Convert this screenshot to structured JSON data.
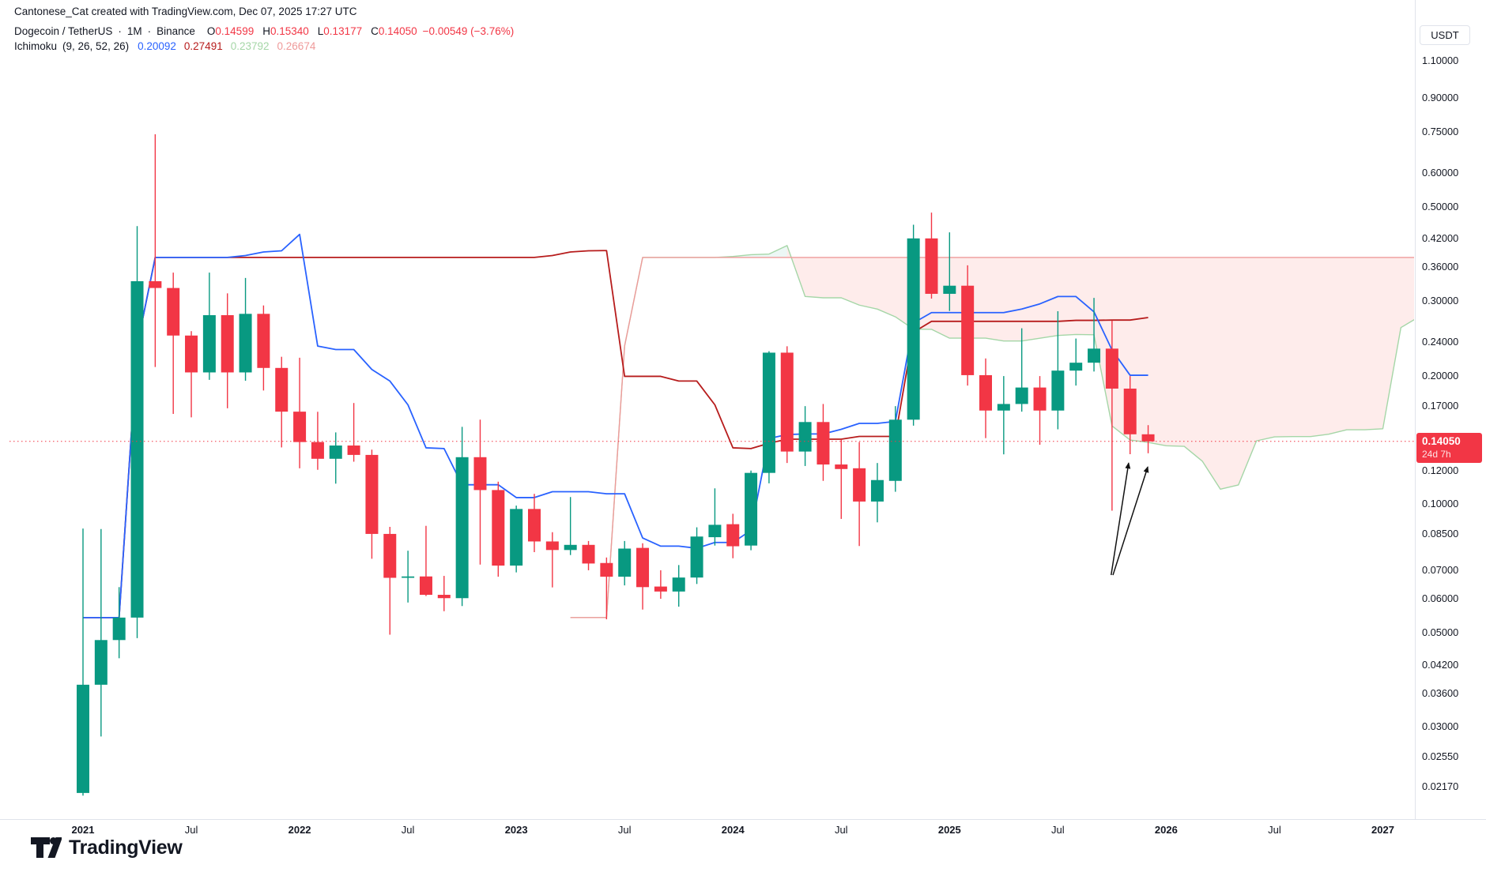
{
  "header": {
    "attribution": "Cantonese_Cat created with TradingView.com, Dec 07, 2025 17:27 UTC"
  },
  "symbol_legend": {
    "pair": "Dogecoin / TetherUS",
    "separator": "·",
    "interval": "1M",
    "exchange": "Binance",
    "ohlc": [
      {
        "label": "O",
        "value": "0.14599"
      },
      {
        "label": "H",
        "value": "0.15340"
      },
      {
        "label": "L",
        "value": "0.13177"
      },
      {
        "label": "C",
        "value": "0.14050"
      }
    ],
    "change": "−0.00549 (−3.76%)",
    "value_color": "#F23645"
  },
  "indicator_legend": {
    "name": "Ichimoku",
    "params": "(9, 26, 52, 26)",
    "values": [
      {
        "text": "0.20092",
        "color": "#2962FF"
      },
      {
        "text": "0.27491",
        "color": "#B71C1C"
      },
      {
        "text": "0.23792",
        "color": "#A5D6A7"
      },
      {
        "text": "0.26674",
        "color": "#EF9A9A"
      }
    ]
  },
  "price_axis": {
    "currency": "USDT",
    "ticks": [
      {
        "value": 1.1,
        "label": "1.10000"
      },
      {
        "value": 0.9,
        "label": "0.90000"
      },
      {
        "value": 0.75,
        "label": "0.75000"
      },
      {
        "value": 0.6,
        "label": "0.60000"
      },
      {
        "value": 0.5,
        "label": "0.50000"
      },
      {
        "value": 0.42,
        "label": "0.42000"
      },
      {
        "value": 0.36,
        "label": "0.36000"
      },
      {
        "value": 0.3,
        "label": "0.30000"
      },
      {
        "value": 0.24,
        "label": "0.24000"
      },
      {
        "value": 0.2,
        "label": "0.20000"
      },
      {
        "value": 0.17,
        "label": "0.17000"
      },
      {
        "value": 0.12,
        "label": "0.12000"
      },
      {
        "value": 0.1,
        "label": "0.10000"
      },
      {
        "value": 0.085,
        "label": "0.08500"
      },
      {
        "value": 0.07,
        "label": "0.07000"
      },
      {
        "value": 0.06,
        "label": "0.06000"
      },
      {
        "value": 0.05,
        "label": "0.05000"
      },
      {
        "value": 0.042,
        "label": "0.04200"
      },
      {
        "value": 0.036,
        "label": "0.03600"
      },
      {
        "value": 0.03,
        "label": "0.03000"
      },
      {
        "value": 0.0255,
        "label": "0.02550"
      },
      {
        "value": 0.0217,
        "label": "0.02170"
      }
    ],
    "last_price": {
      "text": "0.14050",
      "countdown": "24d 7h",
      "value": 0.1405,
      "color": "#F23645"
    }
  },
  "time_axis": {
    "labels": [
      {
        "text": "2021",
        "month_index": 0,
        "major": true
      },
      {
        "text": "Jul",
        "month_index": 6,
        "major": false
      },
      {
        "text": "2022",
        "month_index": 12,
        "major": true
      },
      {
        "text": "Jul",
        "month_index": 18,
        "major": false
      },
      {
        "text": "2023",
        "month_index": 24,
        "major": true
      },
      {
        "text": "Jul",
        "month_index": 30,
        "major": false
      },
      {
        "text": "2024",
        "month_index": 36,
        "major": true
      },
      {
        "text": "Jul",
        "month_index": 42,
        "major": false
      },
      {
        "text": "2025",
        "month_index": 48,
        "major": true
      },
      {
        "text": "Jul",
        "month_index": 54,
        "major": false
      },
      {
        "text": "2026",
        "month_index": 60,
        "major": true
      },
      {
        "text": "Jul",
        "month_index": 66,
        "major": false
      },
      {
        "text": "2027",
        "month_index": 72,
        "major": true
      }
    ]
  },
  "logo": {
    "brand": "TradingView"
  },
  "chart_data": {
    "type": "candlestick",
    "title": "Dogecoin / TetherUS monthly with Ichimoku (9, 26, 52, 26)",
    "symbol": "DOGEUSDT",
    "exchange": "Binance",
    "interval": "1M",
    "scale": "log",
    "start_month": "2021-01",
    "ylim": [
      0.01823,
      1.3555
    ],
    "grid": false,
    "ohlc": [
      [
        0.021,
        0.0877,
        0.0207,
        0.0377
      ],
      [
        0.0377,
        0.0875,
        0.0285,
        0.048
      ],
      [
        0.048,
        0.0639,
        0.0435,
        0.0542
      ],
      [
        0.0542,
        0.45,
        0.0485,
        0.334
      ],
      [
        0.334,
        0.739,
        0.21,
        0.322
      ],
      [
        0.322,
        0.35,
        0.163,
        0.249
      ],
      [
        0.249,
        0.255,
        0.16,
        0.204
      ],
      [
        0.204,
        0.35,
        0.196,
        0.278
      ],
      [
        0.278,
        0.3128,
        0.168,
        0.204
      ],
      [
        0.204,
        0.34,
        0.195,
        0.28
      ],
      [
        0.28,
        0.293,
        0.185,
        0.209
      ],
      [
        0.209,
        0.222,
        0.136,
        0.165
      ],
      [
        0.165,
        0.2209,
        0.1215,
        0.14
      ],
      [
        0.14,
        0.1649,
        0.1205,
        0.1279
      ],
      [
        0.1279,
        0.1475,
        0.1118,
        0.1374
      ],
      [
        0.1374,
        0.1729,
        0.1259,
        0.1306
      ],
      [
        0.1306,
        0.1344,
        0.0745,
        0.0852
      ],
      [
        0.0852,
        0.0885,
        0.0494,
        0.0672
      ],
      [
        0.0672,
        0.0778,
        0.0588,
        0.0677
      ],
      [
        0.0677,
        0.089,
        0.0609,
        0.0613
      ],
      [
        0.0613,
        0.0679,
        0.0561,
        0.0602
      ],
      [
        0.0602,
        0.152,
        0.0577,
        0.129
      ],
      [
        0.129,
        0.158,
        0.0722,
        0.108
      ],
      [
        0.108,
        0.113,
        0.0676,
        0.0718
      ],
      [
        0.0718,
        0.0993,
        0.0692,
        0.0975
      ],
      [
        0.0975,
        0.1058,
        0.0772,
        0.0818
      ],
      [
        0.0818,
        0.086,
        0.0638,
        0.0781
      ],
      [
        0.0781,
        0.104,
        0.076,
        0.0803
      ],
      [
        0.0803,
        0.082,
        0.07,
        0.0726
      ],
      [
        0.0728,
        0.075,
        0.0537,
        0.0676
      ],
      [
        0.0676,
        0.082,
        0.0645,
        0.0787
      ],
      [
        0.079,
        0.081,
        0.0566,
        0.0639
      ],
      [
        0.0641,
        0.07,
        0.06,
        0.0624
      ],
      [
        0.0624,
        0.072,
        0.0575,
        0.0673
      ],
      [
        0.0673,
        0.0883,
        0.065,
        0.084
      ],
      [
        0.0837,
        0.109,
        0.08,
        0.0895
      ],
      [
        0.0898,
        0.095,
        0.0747,
        0.0797
      ],
      [
        0.08,
        0.12,
        0.078,
        0.1185
      ],
      [
        0.1185,
        0.2288,
        0.112,
        0.227
      ],
      [
        0.227,
        0.235,
        0.125,
        0.133
      ],
      [
        0.133,
        0.17,
        0.123,
        0.156
      ],
      [
        0.156,
        0.172,
        0.1135,
        0.124
      ],
      [
        0.124,
        0.142,
        0.0924,
        0.121
      ],
      [
        0.1215,
        0.14,
        0.0798,
        0.1015
      ],
      [
        0.1015,
        0.125,
        0.0907,
        0.114
      ],
      [
        0.1135,
        0.17,
        0.107,
        0.158
      ],
      [
        0.158,
        0.4532,
        0.153,
        0.421
      ],
      [
        0.421,
        0.484,
        0.304,
        0.312
      ],
      [
        0.312,
        0.435,
        0.2844,
        0.326
      ],
      [
        0.326,
        0.364,
        0.19,
        0.201
      ],
      [
        0.201,
        0.22,
        0.143,
        0.166
      ],
      [
        0.166,
        0.2,
        0.131,
        0.172
      ],
      [
        0.172,
        0.259,
        0.165,
        0.188
      ],
      [
        0.188,
        0.2,
        0.138,
        0.166
      ],
      [
        0.166,
        0.284,
        0.15,
        0.206
      ],
      [
        0.206,
        0.245,
        0.19,
        0.215
      ],
      [
        0.215,
        0.3052,
        0.205,
        0.232
      ],
      [
        0.232,
        0.27,
        0.0966,
        0.1869
      ],
      [
        0.1869,
        0.2,
        0.1311,
        0.146
      ],
      [
        0.14599,
        0.1534,
        0.13177,
        0.1405
      ]
    ],
    "indicator": {
      "name": "Ichimoku Cloud",
      "conversion_len": 9,
      "base_len": 26,
      "lagging_len": 52,
      "displacement": 26,
      "legend_values": {
        "conversion": 0.20092,
        "base": 0.27491,
        "lead_a": 0.23792,
        "lead_b": 0.26674
      }
    },
    "current_price_line": {
      "price": 0.1405,
      "style": "dotted",
      "color": "#F23645"
    },
    "colors": {
      "up": "#089981",
      "down": "#F23645",
      "conversion_line": "#2962FF",
      "base_line": "#B71C1C",
      "lead_a_line": "#A5D6A7",
      "lead_b_line": "#EF9A9A",
      "cloud_bearish": "rgba(244,67,54,0.10)",
      "cloud_bullish": "rgba(8,153,129,0.08)",
      "axis_border": "#E0E3EB",
      "text": "#131722"
    },
    "annotations": {
      "arrows": [
        {
          "from_month": 56.95,
          "from_price": 0.0682,
          "to_month": 57.92,
          "to_price": 0.125
        },
        {
          "from_month": 57.05,
          "from_price": 0.0682,
          "to_month": 58.98,
          "to_price": 0.1224
        }
      ],
      "arrow_color": "#111111"
    }
  }
}
